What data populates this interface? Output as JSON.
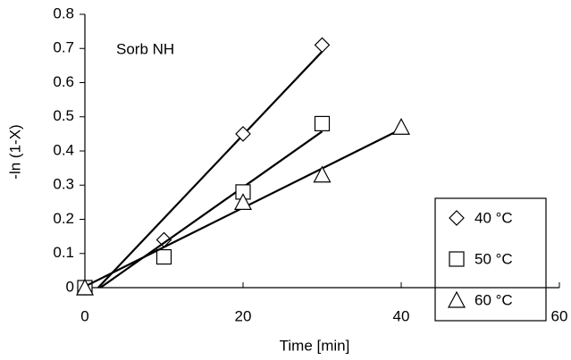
{
  "chart_data": {
    "type": "scatter",
    "annotation": "Sorb NH",
    "x_label": "Time [min]",
    "y_label": "-ln (1-X)",
    "xlim": [
      0,
      60
    ],
    "xticks": [
      0,
      20,
      40,
      60
    ],
    "ylim": [
      0,
      0.8
    ],
    "yticks": [
      0,
      0.1,
      0.2,
      0.3,
      0.4,
      0.5,
      0.6,
      0.7,
      0.8
    ],
    "trendline": "linear",
    "legend": "right",
    "series": [
      {
        "name": "40 °C",
        "marker": "diamond",
        "color": "#000000",
        "x": [
          0,
          10,
          20,
          30
        ],
        "values": [
          0,
          0.14,
          0.45,
          0.71
        ]
      },
      {
        "name": "50 °C",
        "marker": "square",
        "color": "#000000",
        "x": [
          0,
          10,
          20,
          30
        ],
        "values": [
          0,
          0.09,
          0.28,
          0.48
        ]
      },
      {
        "name": "60 °C",
        "marker": "triangle",
        "color": "#000000",
        "x": [
          0,
          20,
          30,
          40
        ],
        "values": [
          0,
          0.25,
          0.33,
          0.47
        ]
      }
    ]
  }
}
